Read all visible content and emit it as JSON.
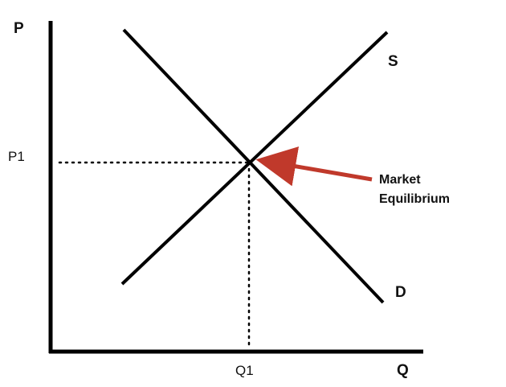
{
  "axes": {
    "y_label": "P",
    "x_label": "Q"
  },
  "curves": {
    "supply_label": "S",
    "demand_label": "D"
  },
  "equilibrium": {
    "price_label": "P1",
    "quantity_label": "Q1",
    "annotation_line1": "Market",
    "annotation_line2": "Equilibrium"
  },
  "colors": {
    "axis": "#000000",
    "curve": "#000000",
    "arrow": "#c0392b",
    "guide": "#000000"
  }
}
